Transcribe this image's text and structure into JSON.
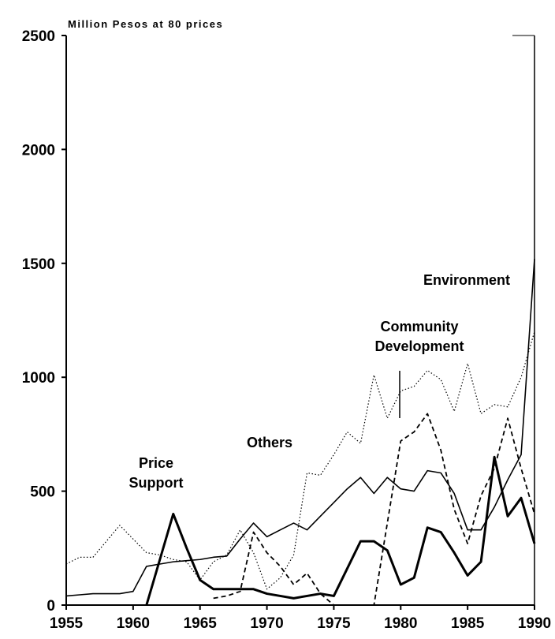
{
  "chart_data": {
    "type": "line",
    "title": "Million Pesos at 80 prices",
    "x": [
      1955,
      1956,
      1957,
      1958,
      1959,
      1960,
      1961,
      1962,
      1963,
      1964,
      1965,
      1966,
      1967,
      1968,
      1969,
      1970,
      1971,
      1972,
      1973,
      1974,
      1975,
      1976,
      1977,
      1978,
      1979,
      1980,
      1981,
      1982,
      1983,
      1984,
      1985,
      1986,
      1987,
      1988,
      1989,
      1990
    ],
    "series": [
      {
        "name": "Environment",
        "color": "#000",
        "style": "solid-thin",
        "values": [
          40,
          45,
          50,
          50,
          50,
          60,
          170,
          180,
          190,
          195,
          200,
          210,
          215,
          290,
          360,
          300,
          330,
          360,
          330,
          390,
          450,
          510,
          560,
          490,
          560,
          510,
          500,
          590,
          580,
          490,
          330,
          330,
          430,
          550,
          660,
          1520
        ]
      },
      {
        "name": "Community Development",
        "color": "#000",
        "style": "dashed",
        "values": [
          null,
          null,
          null,
          null,
          null,
          null,
          null,
          null,
          null,
          null,
          null,
          30,
          40,
          60,
          320,
          230,
          170,
          90,
          140,
          50,
          0,
          0,
          0,
          0,
          360,
          720,
          760,
          840,
          680,
          420,
          270,
          480,
          600,
          820,
          600,
          400
        ]
      },
      {
        "name": "Price Support",
        "color": "#000",
        "style": "solid-thick",
        "values": [
          null,
          null,
          null,
          null,
          null,
          null,
          0,
          200,
          400,
          250,
          110,
          70,
          70,
          70,
          70,
          50,
          40,
          30,
          40,
          50,
          40,
          160,
          280,
          280,
          240,
          90,
          120,
          340,
          320,
          230,
          130,
          190,
          650,
          390,
          470,
          270
        ]
      },
      {
        "name": "Others",
        "color": "#000",
        "style": "dotted",
        "values": [
          180,
          210,
          210,
          280,
          350,
          290,
          230,
          220,
          200,
          190,
          110,
          190,
          220,
          330,
          230,
          70,
          120,
          220,
          580,
          570,
          660,
          760,
          710,
          1010,
          820,
          940,
          960,
          1030,
          990,
          850,
          1060,
          840,
          880,
          870,
          1000,
          1200
        ]
      }
    ],
    "xlim": [
      1955,
      1990
    ],
    "ylim": [
      0,
      2500
    ],
    "xticks": [
      1955,
      1960,
      1965,
      1970,
      1975,
      1980,
      1985,
      1990
    ],
    "yticks": [
      0,
      500,
      1000,
      1500,
      2000,
      2500
    ]
  }
}
